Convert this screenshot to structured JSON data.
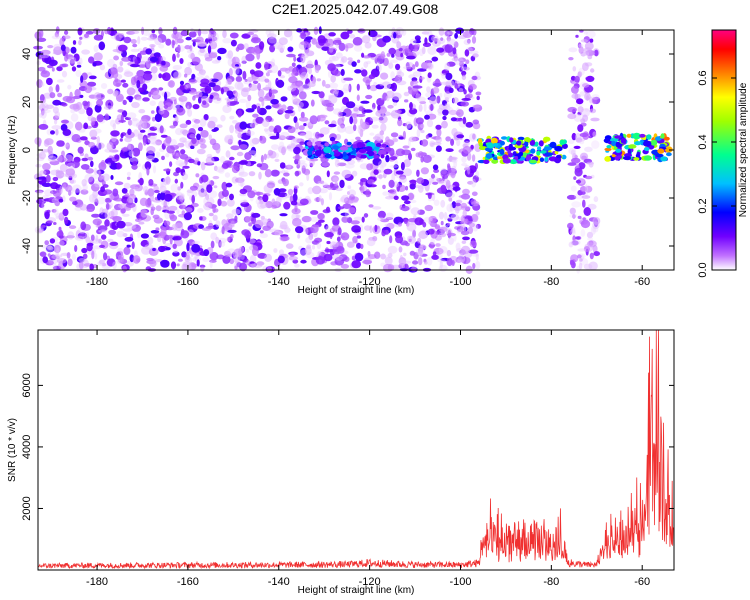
{
  "chart_data": [
    {
      "type": "heatmap",
      "title": "C2E1.2025.042.07.49.G08",
      "xlabel": "Height of straight line (km)",
      "ylabel": "Frequency (Hz)",
      "xlim": [
        -193,
        -53
      ],
      "ylim": [
        -50,
        50
      ],
      "xticks": [
        -180,
        -160,
        -140,
        -120,
        -100,
        -80,
        -60
      ],
      "yticks": [
        -40,
        -20,
        0,
        20,
        40
      ],
      "colorbar": {
        "label": "Normalized spectral amplitude",
        "range": [
          0,
          0.75
        ],
        "ticks": [
          0.0,
          0.2,
          0.4,
          0.6
        ],
        "colors": [
          "#ffffff",
          "#7a00ff",
          "#0000ff",
          "#00c8ff",
          "#00ff80",
          "#ffff00",
          "#ff8000",
          "#ff0000",
          "#ff00a0"
        ]
      },
      "noise_regions": [
        {
          "x_start": -193,
          "x_end": -96,
          "f_range": [
            -50,
            50
          ],
          "amplitude": 0.05
        },
        {
          "x_start": -76,
          "x_end": -70,
          "f_range": [
            -50,
            50
          ],
          "amplitude": 0.04
        }
      ],
      "signal_bands": [
        {
          "x_start": -134,
          "x_end": -116,
          "f_center": 0,
          "f_halfwidth": 3,
          "peak_amplitude": 0.3
        },
        {
          "x_start": -96,
          "x_end": -77,
          "f_center": 0,
          "f_halfwidth": 5,
          "peak_amplitude": 0.6
        },
        {
          "x_start": -68,
          "x_end": -54,
          "f_center": 1,
          "f_halfwidth": 5,
          "peak_amplitude": 0.65
        }
      ]
    },
    {
      "type": "line",
      "xlabel": "Height of straight line (km)",
      "ylabel": "SNR (10 * v/v)",
      "xlim": [
        -193,
        -53
      ],
      "ylim": [
        0,
        7800
      ],
      "xticks": [
        -180,
        -160,
        -140,
        -120,
        -100,
        -80,
        -60
      ],
      "yticks": [
        2000,
        4000,
        6000
      ],
      "line_color": "#f03030",
      "series": [
        {
          "name": "SNR",
          "x": [
            -193,
            -180,
            -160,
            -140,
            -125,
            -120,
            -110,
            -100,
            -96,
            -95,
            -93,
            -90,
            -85,
            -80,
            -78,
            -76,
            -72,
            -70,
            -68,
            -66,
            -64,
            -62,
            -60,
            -59,
            -58,
            -57,
            -56,
            -55,
            -54,
            -53
          ],
          "y": [
            180,
            200,
            210,
            220,
            240,
            300,
            230,
            220,
            300,
            1500,
            1600,
            1400,
            1300,
            1500,
            1400,
            300,
            220,
            230,
            1400,
            1500,
            1600,
            2000,
            3000,
            4800,
            6300,
            7500,
            6000,
            4200,
            3200,
            2500
          ]
        }
      ]
    }
  ]
}
